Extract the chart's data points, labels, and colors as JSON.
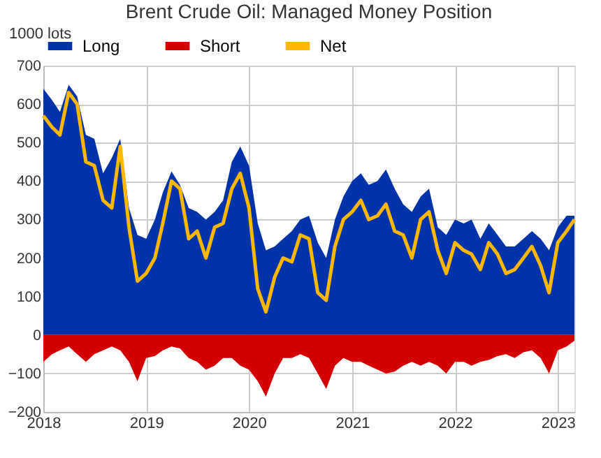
{
  "chart_data": {
    "type": "area",
    "title": "Brent Crude Oil: Managed Money Position",
    "ylabel": "1000 lots",
    "x": [
      "2018-01",
      "2018-02",
      "2018-03",
      "2018-04",
      "2018-05",
      "2018-06",
      "2018-07",
      "2018-08",
      "2018-09",
      "2018-10",
      "2018-11",
      "2018-12",
      "2019-01",
      "2019-02",
      "2019-03",
      "2019-04",
      "2019-05",
      "2019-06",
      "2019-07",
      "2019-08",
      "2019-09",
      "2019-10",
      "2019-11",
      "2019-12",
      "2020-01",
      "2020-02",
      "2020-03",
      "2020-04",
      "2020-05",
      "2020-06",
      "2020-07",
      "2020-08",
      "2020-09",
      "2020-10",
      "2020-11",
      "2020-12",
      "2021-01",
      "2021-02",
      "2021-03",
      "2021-04",
      "2021-05",
      "2021-06",
      "2021-07",
      "2021-08",
      "2021-09",
      "2021-10",
      "2021-11",
      "2021-12",
      "2022-01",
      "2022-02",
      "2022-03",
      "2022-04",
      "2022-05",
      "2022-06",
      "2022-07",
      "2022-08",
      "2022-09",
      "2022-10",
      "2022-11",
      "2022-12",
      "2023-01",
      "2023-02",
      "2023-03"
    ],
    "series": [
      {
        "name": "Long",
        "color": "#0033aa",
        "values": [
          640,
          610,
          580,
          650,
          620,
          520,
          510,
          420,
          460,
          510,
          330,
          260,
          250,
          300,
          370,
          425,
          390,
          330,
          320,
          300,
          320,
          350,
          450,
          490,
          440,
          290,
          220,
          230,
          250,
          270,
          300,
          310,
          240,
          200,
          300,
          360,
          400,
          420,
          390,
          400,
          430,
          380,
          340,
          320,
          360,
          380,
          280,
          260,
          300,
          290,
          300,
          250,
          290,
          260,
          230,
          230,
          250,
          270,
          250,
          220,
          280,
          310,
          310
        ]
      },
      {
        "name": "Short",
        "color": "#d40000",
        "values": [
          -70,
          -50,
          -40,
          -30,
          -50,
          -70,
          -50,
          -40,
          -30,
          -40,
          -70,
          -120,
          -60,
          -55,
          -40,
          -30,
          -35,
          -60,
          -70,
          -90,
          -80,
          -60,
          -60,
          -80,
          -90,
          -120,
          -160,
          -100,
          -60,
          -60,
          -50,
          -60,
          -100,
          -140,
          -80,
          -60,
          -70,
          -70,
          -80,
          -90,
          -100,
          -95,
          -80,
          -70,
          -80,
          -70,
          -80,
          -100,
          -70,
          -70,
          -80,
          -70,
          -65,
          -55,
          -50,
          -60,
          -45,
          -40,
          -60,
          -100,
          -40,
          -30,
          -15
        ]
      },
      {
        "name": "Net",
        "type": "line",
        "color": "#ffb800",
        "values": [
          570,
          540,
          520,
          630,
          600,
          450,
          440,
          350,
          330,
          490,
          280,
          140,
          160,
          200,
          290,
          400,
          380,
          250,
          270,
          200,
          280,
          290,
          380,
          420,
          330,
          120,
          60,
          150,
          200,
          190,
          260,
          250,
          110,
          90,
          230,
          300,
          320,
          350,
          300,
          310,
          340,
          270,
          260,
          200,
          300,
          320,
          220,
          160,
          240,
          220,
          210,
          170,
          240,
          210,
          160,
          170,
          200,
          230,
          180,
          110,
          240,
          270,
          300
        ]
      }
    ],
    "xlim": [
      "2018-01",
      "2023-03"
    ],
    "xticks": [
      "2018",
      "2019",
      "2020",
      "2021",
      "2022",
      "2023"
    ],
    "ylim": [
      -200,
      700
    ],
    "yticks": [
      -200,
      -100,
      0,
      100,
      200,
      300,
      400,
      500,
      600,
      700
    ],
    "grid": true,
    "legend": "top",
    "line_style": "solid"
  }
}
